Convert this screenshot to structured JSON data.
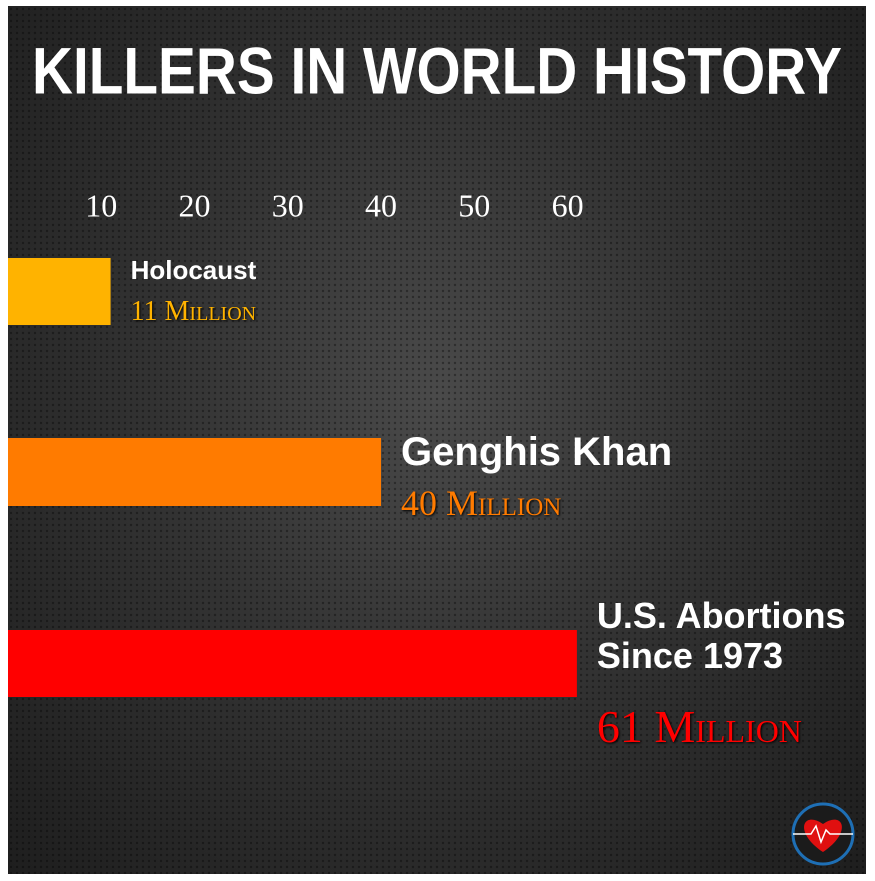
{
  "chart_data": {
    "type": "bar",
    "orientation": "horizontal",
    "title": "KILLERS IN WORLD HISTORY",
    "categories": [
      "Holocaust",
      "Genghis Khan",
      "U.S. Abortions Since 1973"
    ],
    "values": [
      11,
      40,
      61
    ],
    "value_labels": [
      "11 Million",
      "40 Million",
      "61 Million"
    ],
    "colors": [
      "#ffb300",
      "#ff7b00",
      "#ff0000"
    ],
    "xlim": [
      0,
      92
    ],
    "xticks": [
      10,
      20,
      30,
      40,
      50,
      60
    ],
    "grid": false
  }
}
